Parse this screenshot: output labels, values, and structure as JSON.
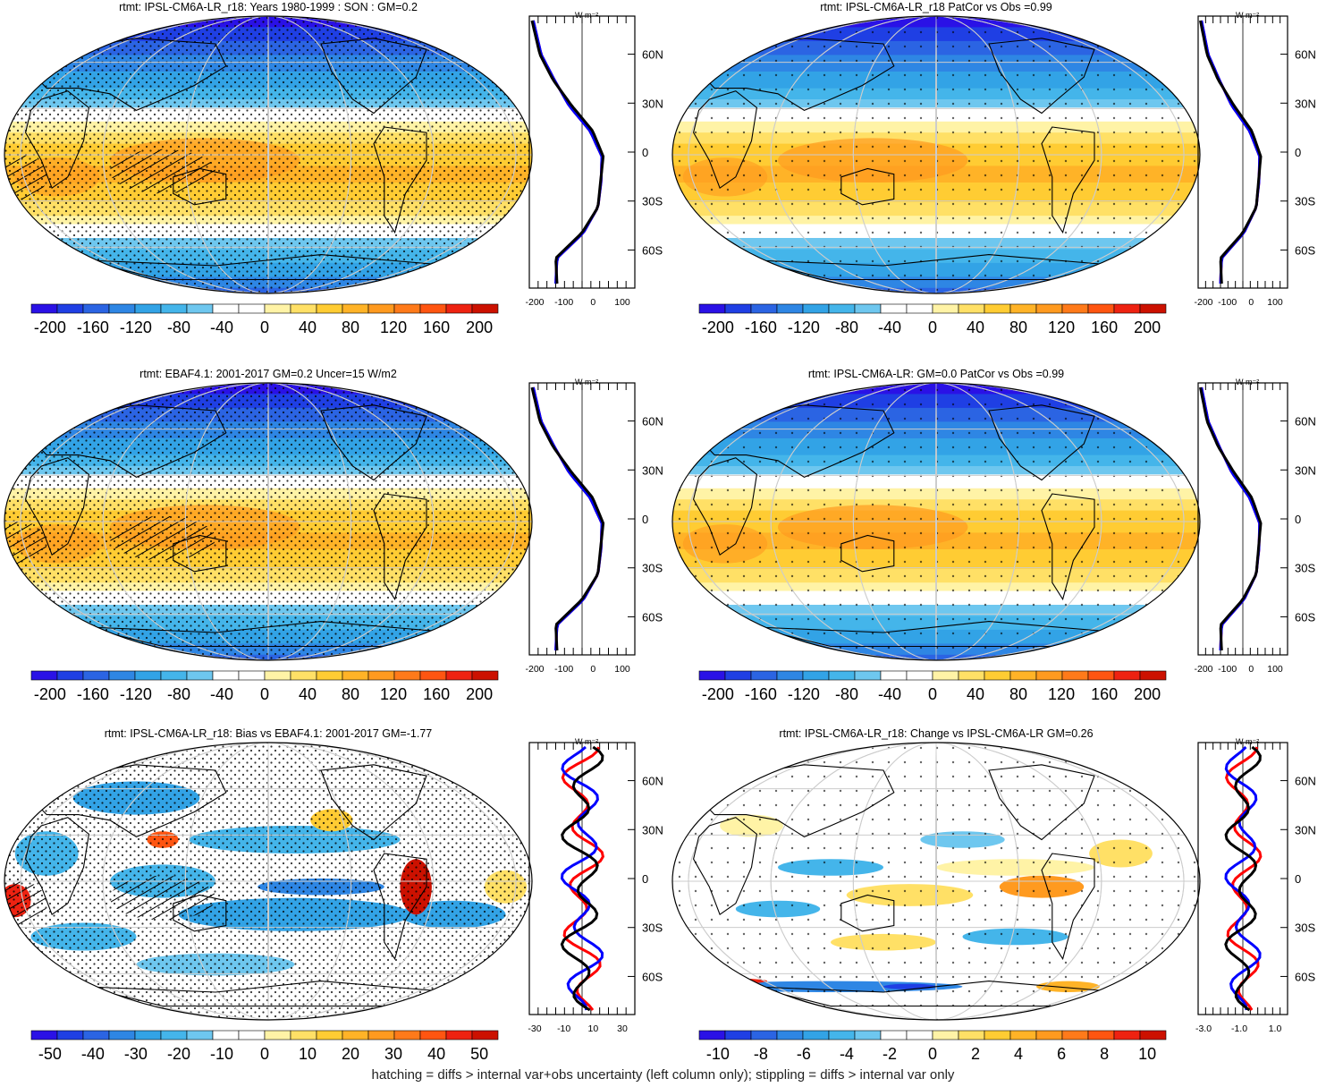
{
  "footer": "hatching = diffs > internal var+obs uncertainty (left column only); stippling = diffs > internal var only",
  "palette": [
    "#2a11e6",
    "#1f3fe4",
    "#2b64e3",
    "#2e86e4",
    "#32a3e6",
    "#44b5ea",
    "#6ec7ef",
    "#ffffff",
    "#ffffff",
    "#fff3a6",
    "#ffe066",
    "#ffcc33",
    "#ffb327",
    "#ff9a1f",
    "#ff7a1a",
    "#ff5511",
    "#ee2211",
    "#cc1100"
  ],
  "profile_colors": {
    "red": "#ff0000",
    "blue": "#0000ff",
    "black": "#000000"
  },
  "lat_labels": [
    "60N",
    "30N",
    "0",
    "30S",
    "60S"
  ],
  "unit_label": "W m⁻²",
  "panels": [
    {
      "title": "rtmt: IPSL-CM6A-LR_r18: Years 1980-1999 : SON : GM=0.2",
      "kind": "abs",
      "stipple": "dense",
      "hatch": true,
      "colorbar_labels": [
        "-200",
        "-160",
        "-120",
        "-80",
        "-40",
        "0",
        "40",
        "80",
        "120",
        "160",
        "200"
      ],
      "profile_ticks": [
        "-200",
        "-100",
        "0",
        "100"
      ]
    },
    {
      "title": "rtmt: IPSL-CM6A-LR_r18 PatCor vs Obs =0.99",
      "kind": "abs",
      "stipple": "sparse",
      "hatch": false,
      "colorbar_labels": [
        "-200",
        "-160",
        "-120",
        "-80",
        "-40",
        "0",
        "40",
        "80",
        "120",
        "160",
        "200"
      ],
      "profile_ticks": [
        "-200",
        "-100",
        "0",
        "100"
      ]
    },
    {
      "title": "rtmt: EBAF4.1: 2001-2017 GM=0.2 Uncer=15 W/m2",
      "kind": "abs",
      "stipple": "dense",
      "hatch": true,
      "colorbar_labels": [
        "-200",
        "-160",
        "-120",
        "-80",
        "-40",
        "0",
        "40",
        "80",
        "120",
        "160",
        "200"
      ],
      "profile_ticks": [
        "-200",
        "-100",
        "0",
        "100"
      ]
    },
    {
      "title": "rtmt: IPSL-CM6A-LR: GM=0.0 PatCor vs Obs =0.99",
      "kind": "abs",
      "stipple": "sparse",
      "hatch": false,
      "colorbar_labels": [
        "-200",
        "-160",
        "-120",
        "-80",
        "-40",
        "0",
        "40",
        "80",
        "120",
        "160",
        "200"
      ],
      "profile_ticks": [
        "-200",
        "-100",
        "0",
        "100"
      ]
    },
    {
      "title": "rtmt: IPSL-CM6A-LR_r18: Bias vs EBAF4.1: 2001-2017  GM=-1.77",
      "kind": "bias",
      "stipple": "dense",
      "hatch": true,
      "colorbar_labels": [
        "-50",
        "-40",
        "-30",
        "-20",
        "-10",
        "0",
        "10",
        "20",
        "30",
        "40",
        "50"
      ],
      "profile_ticks": [
        "-30",
        "-10",
        "10",
        "30"
      ]
    },
    {
      "title": "rtmt: IPSL-CM6A-LR_r18: Change vs IPSL-CM6A-LR GM=0.26",
      "kind": "change",
      "stipple": "sparse",
      "hatch": false,
      "colorbar_labels": [
        "-10",
        "-8",
        "-6",
        "-4",
        "-2",
        "0",
        "2",
        "4",
        "6",
        "8",
        "10"
      ],
      "profile_ticks": [
        "-3.0",
        "-1.0",
        "1.0"
      ]
    }
  ],
  "chart_data": [
    {
      "type": "heatmap",
      "title": "rtmt: IPSL-CM6A-LR_r18: Years 1980-1999 : SON : GM=0.2",
      "units": "W m-2",
      "range": [
        -200,
        200
      ],
      "zonal_mean_profile": {
        "lat": [
          80,
          60,
          45,
          30,
          15,
          0,
          -15,
          -30,
          -45,
          -60,
          -75
        ],
        "model": [
          -190,
          -160,
          -110,
          -40,
          40,
          80,
          70,
          60,
          0,
          -100,
          -95
        ],
        "obs": [
          -185,
          -155,
          -105,
          -50,
          30,
          75,
          72,
          60,
          5,
          -95,
          -100
        ]
      }
    },
    {
      "type": "heatmap",
      "title": "rtmt: IPSL-CM6A-LR_r18 PatCor vs Obs =0.99",
      "units": "W m-2",
      "range": [
        -200,
        200
      ]
    },
    {
      "type": "heatmap",
      "title": "rtmt: EBAF4.1: 2001-2017 GM=0.2 Uncer=15 W/m2",
      "units": "W m-2",
      "range": [
        -200,
        200
      ]
    },
    {
      "type": "heatmap",
      "title": "rtmt: IPSL-CM6A-LR: GM=0.0 PatCor vs Obs =0.99",
      "units": "W m-2",
      "range": [
        -200,
        200
      ]
    },
    {
      "type": "heatmap",
      "title": "rtmt: IPSL-CM6A-LR_r18: Bias vs EBAF4.1: 2001-2017  GM=-1.77",
      "units": "W m-2",
      "range": [
        -50,
        50
      ]
    },
    {
      "type": "heatmap",
      "title": "rtmt: IPSL-CM6A-LR_r18: Change vs IPSL-CM6A-LR GM=0.26",
      "units": "W m-2",
      "range": [
        -10,
        10
      ]
    }
  ]
}
